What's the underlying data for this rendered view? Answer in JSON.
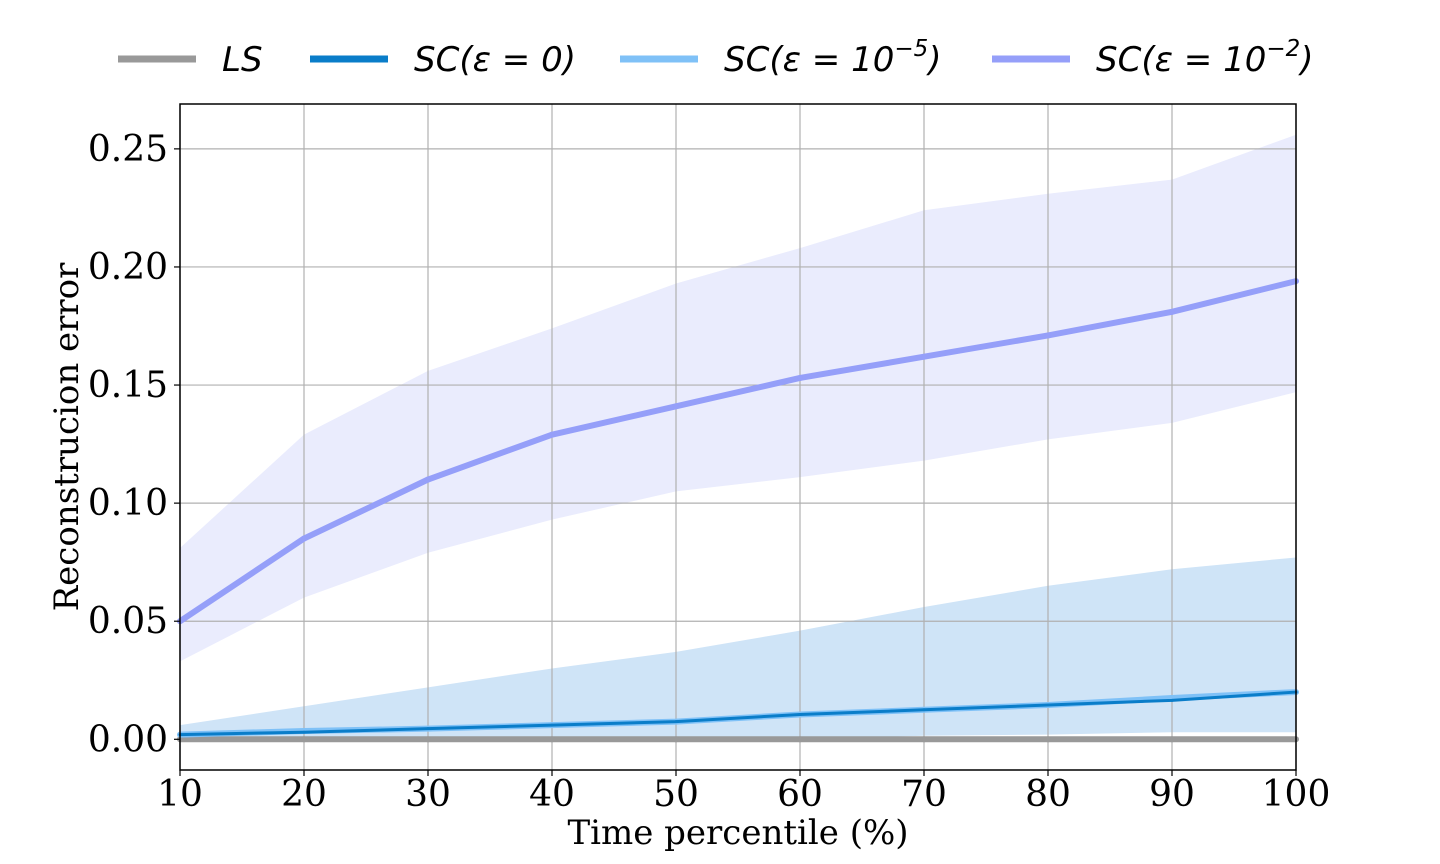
{
  "chart_data": {
    "type": "line",
    "title": "",
    "xlabel": "Time percentile (%)",
    "ylabel": "Reconstrucion error",
    "x": [
      10,
      20,
      30,
      40,
      50,
      60,
      70,
      80,
      90,
      100
    ],
    "xlim": [
      10,
      100
    ],
    "ylim": [
      -0.013,
      0.269
    ],
    "xticks": [
      "10",
      "20",
      "30",
      "40",
      "50",
      "60",
      "70",
      "80",
      "90",
      "100"
    ],
    "yticks": [
      {
        "value": 0.0,
        "label": "0.00"
      },
      {
        "value": 0.05,
        "label": "0.05"
      },
      {
        "value": 0.1,
        "label": "0.10"
      },
      {
        "value": 0.15,
        "label": "0.15"
      },
      {
        "value": 0.2,
        "label": "0.20"
      },
      {
        "value": 0.25,
        "label": "0.25"
      }
    ],
    "grid": true,
    "legend_position": "top",
    "series": [
      {
        "name": "LS",
        "legend": {
          "base": "LS",
          "exp": ""
        },
        "color": "#999999",
        "values": [
          0,
          0,
          0,
          0,
          0,
          0,
          0,
          0,
          0,
          0
        ]
      },
      {
        "name": "SC(ε = 0)",
        "legend": {
          "base": "SC(ε = 0)",
          "exp": ""
        },
        "color": "#0a7dc9",
        "values": [
          0.002,
          0.003,
          0.0045,
          0.006,
          0.0075,
          0.0105,
          0.0125,
          0.0145,
          0.0165,
          0.02
        ]
      },
      {
        "name": "SC(ε = 10^-5)",
        "legend": {
          "base": "SC(ε = 10",
          "exp": "−5",
          "close": ")"
        },
        "color": "#7fc1f7",
        "band_color": "#cfe4f7",
        "values": [
          0.002,
          0.0035,
          0.0045,
          0.006,
          0.0075,
          0.0105,
          0.0125,
          0.0145,
          0.0175,
          0.02
        ],
        "band_lower": [
          0.0,
          0.0,
          0.0,
          0.0,
          0.0,
          0.0,
          0.0015,
          0.002,
          0.003,
          0.003
        ],
        "band_upper": [
          0.006,
          0.014,
          0.022,
          0.03,
          0.037,
          0.046,
          0.056,
          0.065,
          0.072,
          0.077
        ]
      },
      {
        "name": "SC(ε = 10^-2)",
        "legend": {
          "base": "SC(ε = 10",
          "exp": "−2",
          "close": ")"
        },
        "color": "#959ff9",
        "band_color": "#eaecfd",
        "values": [
          0.05,
          0.085,
          0.11,
          0.129,
          0.141,
          0.153,
          0.162,
          0.171,
          0.181,
          0.194
        ],
        "band_lower": [
          0.033,
          0.06,
          0.079,
          0.093,
          0.105,
          0.111,
          0.118,
          0.127,
          0.134,
          0.147
        ],
        "band_upper": [
          0.081,
          0.129,
          0.156,
          0.174,
          0.193,
          0.208,
          0.224,
          0.231,
          0.237,
          0.256
        ]
      }
    ]
  }
}
